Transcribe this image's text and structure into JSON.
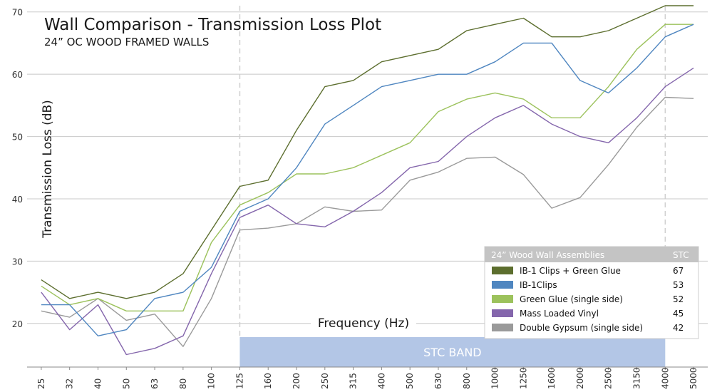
{
  "chart_data": {
    "type": "line",
    "title": "Wall Comparison - Transmission Loss Plot",
    "subtitle": "24” OC WOOD FRAMED WALLS",
    "xlabel": "Frequency (Hz)",
    "ylabel": "Transmission Loss (dB)",
    "ylim": [
      13,
      71
    ],
    "yticks": [
      20,
      30,
      40,
      50,
      60,
      70
    ],
    "categories": [
      "25",
      "32",
      "40",
      "50",
      "63",
      "80",
      "100",
      "125",
      "160",
      "200",
      "250",
      "315",
      "400",
      "500",
      "630",
      "800",
      "1000",
      "1250",
      "1600",
      "2000",
      "2500",
      "3150",
      "4000",
      "5000"
    ],
    "grid": "horizontal",
    "stc_band": {
      "label": "STC BAND",
      "from": "125",
      "to": "4000",
      "color": "#b3c6e6"
    },
    "legend": {
      "placement": "bottom-right",
      "header": "24” Wood Wall Assemblies",
      "header_right": "STC"
    },
    "series": [
      {
        "name": "IB-1 Clips + Green Glue",
        "stc": "67",
        "color": "#5c6e2e",
        "values": [
          27,
          24,
          25,
          24,
          25,
          28,
          35,
          42,
          43,
          51,
          58,
          59,
          62,
          63,
          64,
          67,
          68,
          69,
          66,
          66,
          67,
          69,
          71,
          71
        ]
      },
      {
        "name": "IB-1Clips",
        "stc": "53",
        "color": "#4f86c0",
        "values": [
          23,
          23,
          18,
          19,
          24,
          25,
          29,
          38,
          40,
          45,
          52,
          55,
          58,
          59,
          60,
          60,
          62,
          65,
          65,
          59,
          57,
          61,
          66,
          68
        ]
      },
      {
        "name": "Green Glue (single side)",
        "stc": "52",
        "color": "#9cc25c",
        "values": [
          26,
          23,
          24,
          22,
          22,
          22,
          33,
          39,
          41,
          44,
          44,
          45,
          47,
          49,
          54,
          56,
          57,
          56,
          53,
          53,
          58,
          64,
          68,
          68
        ]
      },
      {
        "name": "Mass Loaded Vinyl",
        "stc": "45",
        "color": "#8466ac",
        "values": [
          25,
          19,
          23,
          15,
          16,
          18,
          28,
          37,
          39,
          36,
          35.5,
          38,
          41,
          45,
          46,
          50,
          53,
          55,
          52,
          50,
          49,
          53,
          58,
          61
        ]
      },
      {
        "name": "Double Gypsum (single side)",
        "stc": "42",
        "color": "#9a9a9a",
        "values": [
          22,
          21,
          24,
          20.5,
          21.5,
          16.3,
          24,
          35,
          35.3,
          36,
          38.7,
          38,
          38.2,
          43,
          44.3,
          46.5,
          46.7,
          43.9,
          38.5,
          40.2,
          45.5,
          51.5,
          56.3,
          56.1
        ]
      }
    ]
  }
}
